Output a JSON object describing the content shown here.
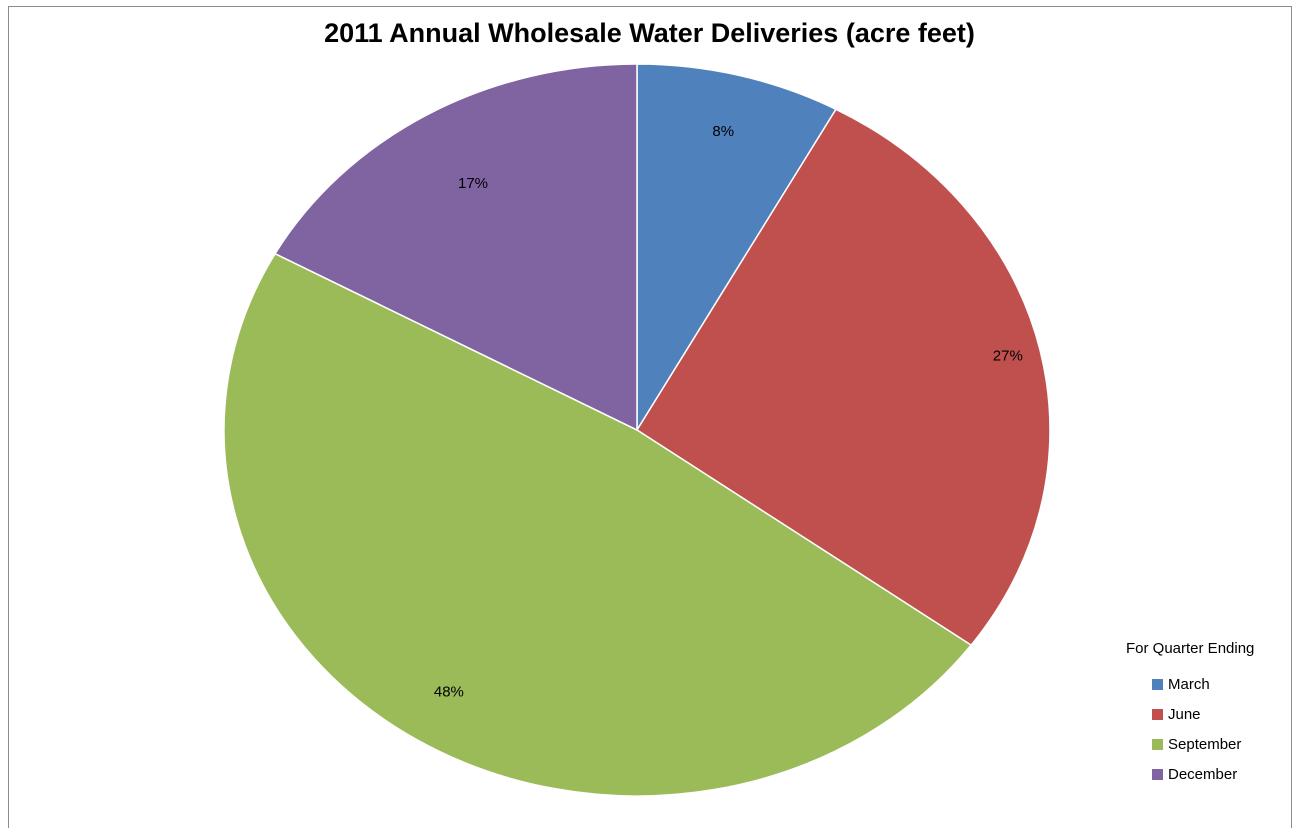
{
  "chart_data": {
    "type": "pie",
    "title": "2011 Annual Wholesale Water Deliveries (acre feet)",
    "legend_title": "For Quarter Ending",
    "legend_position": "bottom-right",
    "categories": [
      "March",
      "June",
      "September",
      "December"
    ],
    "values": [
      8,
      27,
      48,
      17
    ],
    "labels": [
      "8%",
      "27%",
      "48%",
      "17%"
    ],
    "colors": [
      "#4f81bd",
      "#c0504d",
      "#9bbb59",
      "#8064a2"
    ],
    "start_angle": "12 o'clock",
    "direction": "clockwise"
  }
}
